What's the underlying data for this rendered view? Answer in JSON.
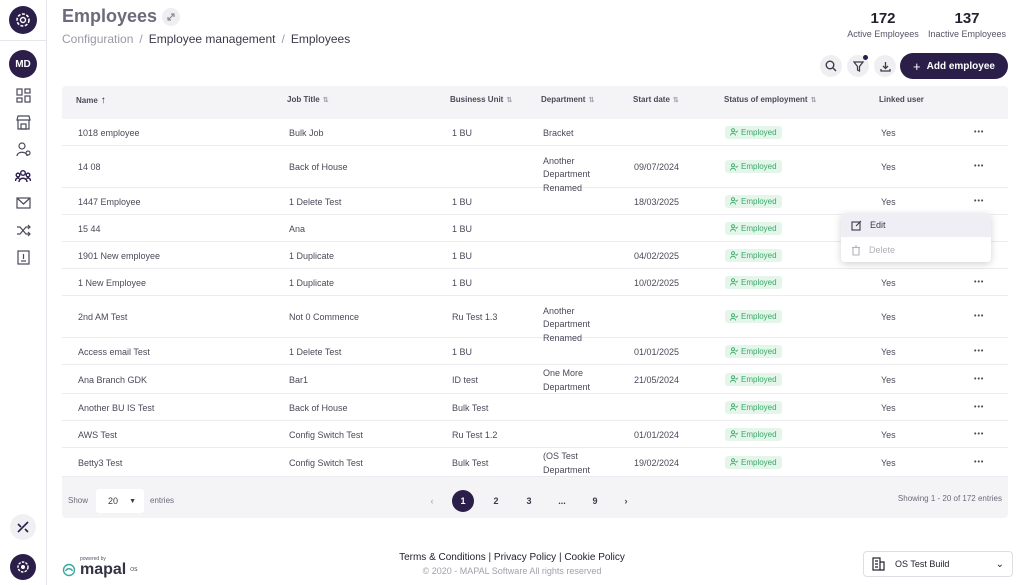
{
  "header": {
    "title": "Employees",
    "breadcrumb": [
      "Configuration",
      "Employee management",
      "Employees"
    ],
    "stats": [
      {
        "value": "172",
        "label": "Active Employees"
      },
      {
        "value": "137",
        "label": "Inactive Employees"
      }
    ],
    "add_label": "Add employee"
  },
  "sidebar": {
    "avatar_initials": "MD",
    "icons": [
      "dashboard-icon",
      "store-icon",
      "user-settings-icon",
      "team-icon",
      "mail-icon",
      "shuffle-icon",
      "report-icon"
    ]
  },
  "table": {
    "columns": [
      "Name",
      "Job Title",
      "Business Unit",
      "Department",
      "Start date",
      "Status of employment",
      "Linked user"
    ],
    "rows": [
      {
        "name": "1018 employee",
        "job": "Bulk Job",
        "bu": "1 BU",
        "dept": "Bracket",
        "start": "",
        "status": "Employed",
        "linked": "Yes"
      },
      {
        "name": "14 08",
        "job": "Back of House",
        "bu": "",
        "dept": "Another Department Renamed",
        "start": "09/07/2024",
        "status": "Employed",
        "linked": "Yes"
      },
      {
        "name": "1447 Employee",
        "job": "1 Delete Test",
        "bu": "1 BU",
        "dept": "",
        "start": "18/03/2025",
        "status": "Employed",
        "linked": "Yes"
      },
      {
        "name": "15 44",
        "job": "Ana",
        "bu": "1 BU",
        "dept": "",
        "start": "",
        "status": "Employed",
        "linked": ""
      },
      {
        "name": "1901 New employee",
        "job": "1 Duplicate",
        "bu": "1 BU",
        "dept": "",
        "start": "04/02/2025",
        "status": "Employed",
        "linked": ""
      },
      {
        "name": "1 New Employee",
        "job": "1 Duplicate",
        "bu": "1 BU",
        "dept": "",
        "start": "10/02/2025",
        "status": "Employed",
        "linked": "Yes"
      },
      {
        "name": "2nd AM Test",
        "job": "Not 0 Commence",
        "bu": "Ru Test 1.3",
        "dept": "Another Department Renamed",
        "start": "",
        "status": "Employed",
        "linked": "Yes"
      },
      {
        "name": "Access email Test",
        "job": "1 Delete Test",
        "bu": "1 BU",
        "dept": "",
        "start": "01/01/2025",
        "status": "Employed",
        "linked": "Yes"
      },
      {
        "name": "Ana Branch GDK",
        "job": "Bar1",
        "bu": "ID test",
        "dept": "One More Department",
        "start": "21/05/2024",
        "status": "Employed",
        "linked": "Yes"
      },
      {
        "name": "Another BU IS Test",
        "job": "Back of House",
        "bu": "Bulk Test",
        "dept": "",
        "start": "",
        "status": "Employed",
        "linked": "Yes"
      },
      {
        "name": "AWS Test",
        "job": "Config Switch Test",
        "bu": "Ru Test 1.2",
        "dept": "",
        "start": "01/01/2024",
        "status": "Employed",
        "linked": "Yes"
      },
      {
        "name": "Betty3 Test",
        "job": "Config Switch Test",
        "bu": "Bulk Test",
        "dept": "(OS Test Department",
        "start": "19/02/2024",
        "status": "Employed",
        "linked": "Yes"
      }
    ]
  },
  "pagination": {
    "show_label": "Show",
    "entries_value": "20",
    "entries_label": "entries",
    "pages": [
      "1",
      "2",
      "3",
      "...",
      "9"
    ],
    "showing_text": "Showing 1 - 20 of 172 entries"
  },
  "context_menu": {
    "edit": "Edit",
    "delete": "Delete"
  },
  "footer": {
    "powered_by": "powered by",
    "brand": "mapal",
    "brand_suffix": "OS",
    "links": "Terms & Conditions | Privacy Policy | Cookie Policy",
    "copyright": "© 2020 - MAPAL Software All rights reserved",
    "build_label": "OS Test Build"
  },
  "colors": {
    "primary": "#2b1f4a",
    "badge_bg": "#e4f6ea",
    "badge_text": "#3aa869"
  }
}
